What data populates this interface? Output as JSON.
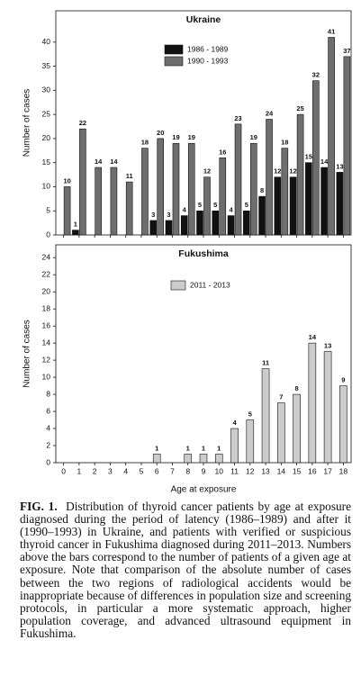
{
  "chart_data": [
    {
      "type": "bar",
      "title": "Ukraine",
      "y_label": "Number of cases",
      "legend": "upper center",
      "series": [
        {
          "name": "1986 - 1989",
          "color": "#111111",
          "values": [
            null,
            1,
            null,
            null,
            null,
            null,
            3,
            3,
            4,
            5,
            5,
            4,
            5,
            8,
            12,
            12,
            15,
            14,
            13
          ]
        },
        {
          "name": "1990 - 1993",
          "color": "#6e6e6e",
          "values": [
            10,
            22,
            14,
            14,
            11,
            18,
            20,
            19,
            19,
            12,
            16,
            23,
            19,
            24,
            18,
            25,
            32,
            41,
            37
          ]
        }
      ],
      "ylim": [
        0,
        46.5
      ],
      "yticks": [
        0,
        5,
        10,
        15,
        20,
        25,
        30,
        35,
        40
      ]
    },
    {
      "type": "bar",
      "title": "Fukushima",
      "x_label": "Age at exposure",
      "y_label": "Number of cases",
      "legend": "upper center",
      "categories": [
        "0",
        "1",
        "2",
        "3",
        "4",
        "5",
        "6",
        "7",
        "8",
        "9",
        "10",
        "11",
        "12",
        "13",
        "14",
        "15",
        "16",
        "17",
        "18"
      ],
      "series": [
        {
          "name": "2011 - 2013",
          "color": "#cccccc",
          "values": [
            null,
            null,
            null,
            null,
            null,
            null,
            1,
            null,
            1,
            1,
            1,
            4,
            5,
            11,
            7,
            8,
            14,
            13,
            9
          ]
        }
      ],
      "ylim": [
        0,
        25.5
      ],
      "yticks": [
        0,
        2,
        4,
        6,
        8,
        10,
        12,
        14,
        16,
        18,
        20,
        22,
        24
      ]
    }
  ],
  "caption": {
    "label": "FIG. 1.",
    "text": "Distribution of thyroid cancer patients by age at exposure diagnosed during the period of latency (1986–1989) and after it (1990–1993) in Ukraine, and patients with verified or suspicious thyroid cancer in Fukushima diagnosed during 2011–2013. Numbers above the bars correspond to the number of patients of a given age at exposure. Note that comparison of the absolute number of cases between the two regions of radiological accidents would be inappropriate because of differences in population size and screening protocols, in particular a more systematic approach, higher population coverage, and advanced ultrasound equipment in Fukushima."
  }
}
